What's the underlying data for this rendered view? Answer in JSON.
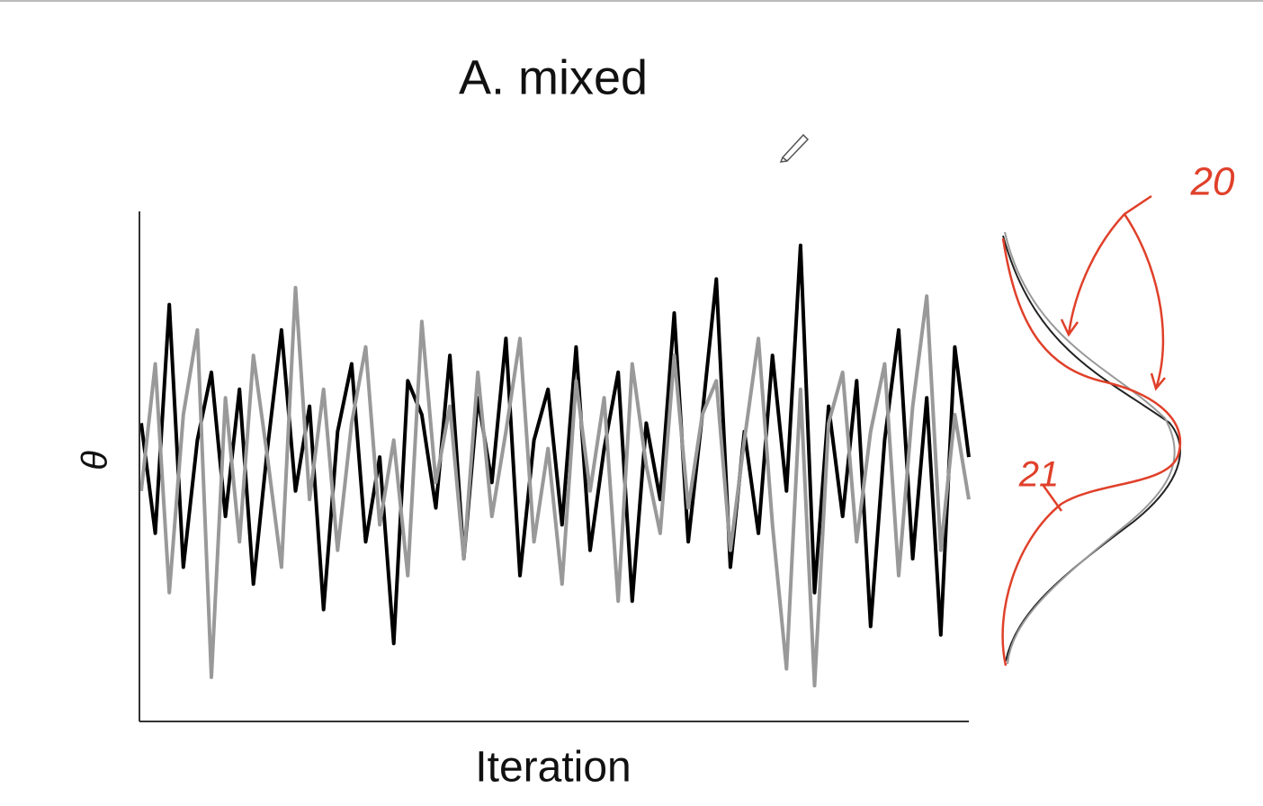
{
  "chart_data": {
    "type": "line",
    "title": "A. mixed",
    "x_label": "Iteration",
    "y_label": "θ",
    "ylim": [
      -3,
      3
    ],
    "series": [
      {
        "color": "#000000",
        "values": [
          0.5,
          -0.8,
          1.9,
          -1.2,
          0.3,
          1.1,
          -0.6,
          0.9,
          -1.4,
          0.2,
          1.6,
          -0.3,
          0.7,
          -1.7,
          0.4,
          1.2,
          -0.9,
          0.1,
          -2.1,
          1.0,
          0.6,
          -0.5,
          1.3,
          -1.1,
          0.8,
          -0.2,
          1.5,
          -1.3,
          0.3,
          0.9,
          -0.7,
          1.4,
          -1.0,
          0.2,
          1.1,
          -1.6,
          0.5,
          -0.4,
          1.8,
          -0.9,
          0.6,
          2.2,
          -1.2,
          0.4,
          -0.8,
          1.3,
          -0.3,
          2.6,
          -1.5,
          0.7,
          -0.6,
          1.0,
          -1.9,
          0.3,
          1.6,
          -1.1,
          0.8,
          -2.0,
          1.4,
          0.1
        ]
      },
      {
        "color": "#999999",
        "values": [
          -0.3,
          1.2,
          -1.5,
          0.6,
          1.6,
          -2.5,
          0.8,
          -0.9,
          1.3,
          0.1,
          -1.2,
          2.1,
          -0.4,
          0.9,
          -1.0,
          0.5,
          1.4,
          -0.7,
          0.3,
          -1.3,
          1.7,
          -0.2,
          0.7,
          -1.1,
          1.1,
          -0.6,
          0.4,
          1.5,
          -0.9,
          0.2,
          -1.4,
          1.0,
          -0.3,
          0.8,
          -1.6,
          1.2,
          0.0,
          -0.8,
          1.3,
          -0.5,
          0.6,
          1.0,
          -1.0,
          0.3,
          1.5,
          -0.7,
          -2.4,
          0.9,
          -2.6,
          0.5,
          1.1,
          -0.9,
          0.4,
          1.2,
          -1.3,
          0.7,
          2.0,
          -1.0,
          0.6,
          -0.4
        ]
      }
    ],
    "annotations": [
      "20",
      "21"
    ]
  }
}
